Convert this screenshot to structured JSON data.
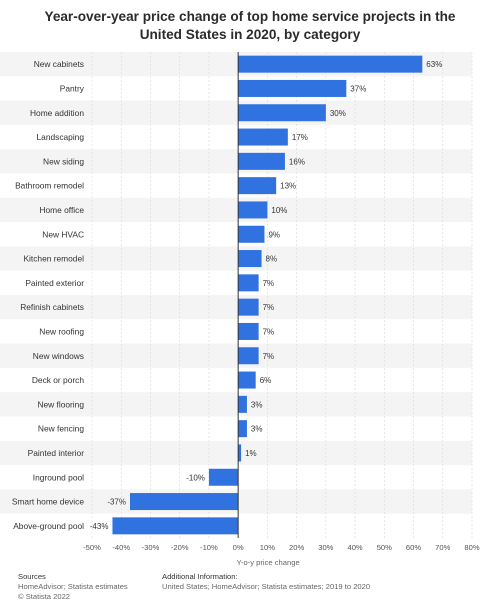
{
  "title": "Year-over-year price change of top home service projects in the United States in 2020, by category",
  "chart_data": {
    "type": "bar",
    "orientation": "horizontal",
    "categories": [
      "New cabinets",
      "Pantry",
      "Home addition",
      "Landscaping",
      "New siding",
      "Bathroom remodel",
      "Home office",
      "New HVAC",
      "Kitchen remodel",
      "Painted exterior",
      "Refinish cabinets",
      "New roofing",
      "New windows",
      "Deck or porch",
      "New flooring",
      "New fencing",
      "Painted interior",
      "Inground pool",
      "Smart home device",
      "Above-ground pool"
    ],
    "values": [
      63,
      37,
      30,
      17,
      16,
      13,
      10,
      9,
      8,
      7,
      7,
      7,
      7,
      6,
      3,
      3,
      1,
      -10,
      -37,
      -43
    ],
    "value_labels": [
      "63%",
      "37%",
      "30%",
      "17%",
      "16%",
      "13%",
      "10%",
      "9%",
      "8%",
      "7%",
      "7%",
      "7%",
      "7%",
      "6%",
      "3%",
      "3%",
      "1%",
      "-10%",
      "-37%",
      "-43%"
    ],
    "xlabel": "Y-o-y price change",
    "xlim": [
      -50,
      80
    ],
    "xticks": [
      -50,
      -40,
      -30,
      -20,
      -10,
      0,
      10,
      20,
      30,
      40,
      50,
      60,
      70,
      80
    ],
    "xtick_labels": [
      "-50%",
      "-40%",
      "-30%",
      "-20%",
      "-10%",
      "0%",
      "10%",
      "20%",
      "30%",
      "40%",
      "50%",
      "60%",
      "70%",
      "80%"
    ],
    "bar_color": "#2f72e0",
    "grid": true
  },
  "footer": {
    "sources_heading": "Sources",
    "sources_text": "HomeAdvisor; Statista estimates",
    "copyright": "© Statista 2022",
    "additional_heading": "Additional Information:",
    "additional_text": "United States; HomeAdvisor; Statista estimates; 2019 to 2020"
  }
}
